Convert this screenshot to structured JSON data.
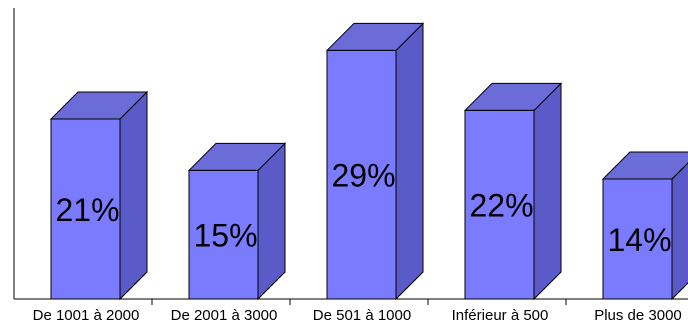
{
  "chart_data": {
    "type": "bar",
    "categories": [
      "De 1001 à 2000",
      "De 2001 à 3000",
      "De 501 à 1000",
      "Inférieur à 500",
      "Plus de 3000"
    ],
    "values": [
      21,
      15,
      29,
      22,
      14
    ],
    "value_labels": [
      "21%",
      "15%",
      "29%",
      "22%",
      "14%"
    ],
    "ylim": [
      0,
      35
    ],
    "grid": false,
    "legend": "none",
    "bar_style": "3d",
    "colors": {
      "front": "#7b7bff",
      "top": "#6c6cd8",
      "side": "#5a5ac8",
      "edge": "#000000",
      "axis": "#000000"
    }
  }
}
